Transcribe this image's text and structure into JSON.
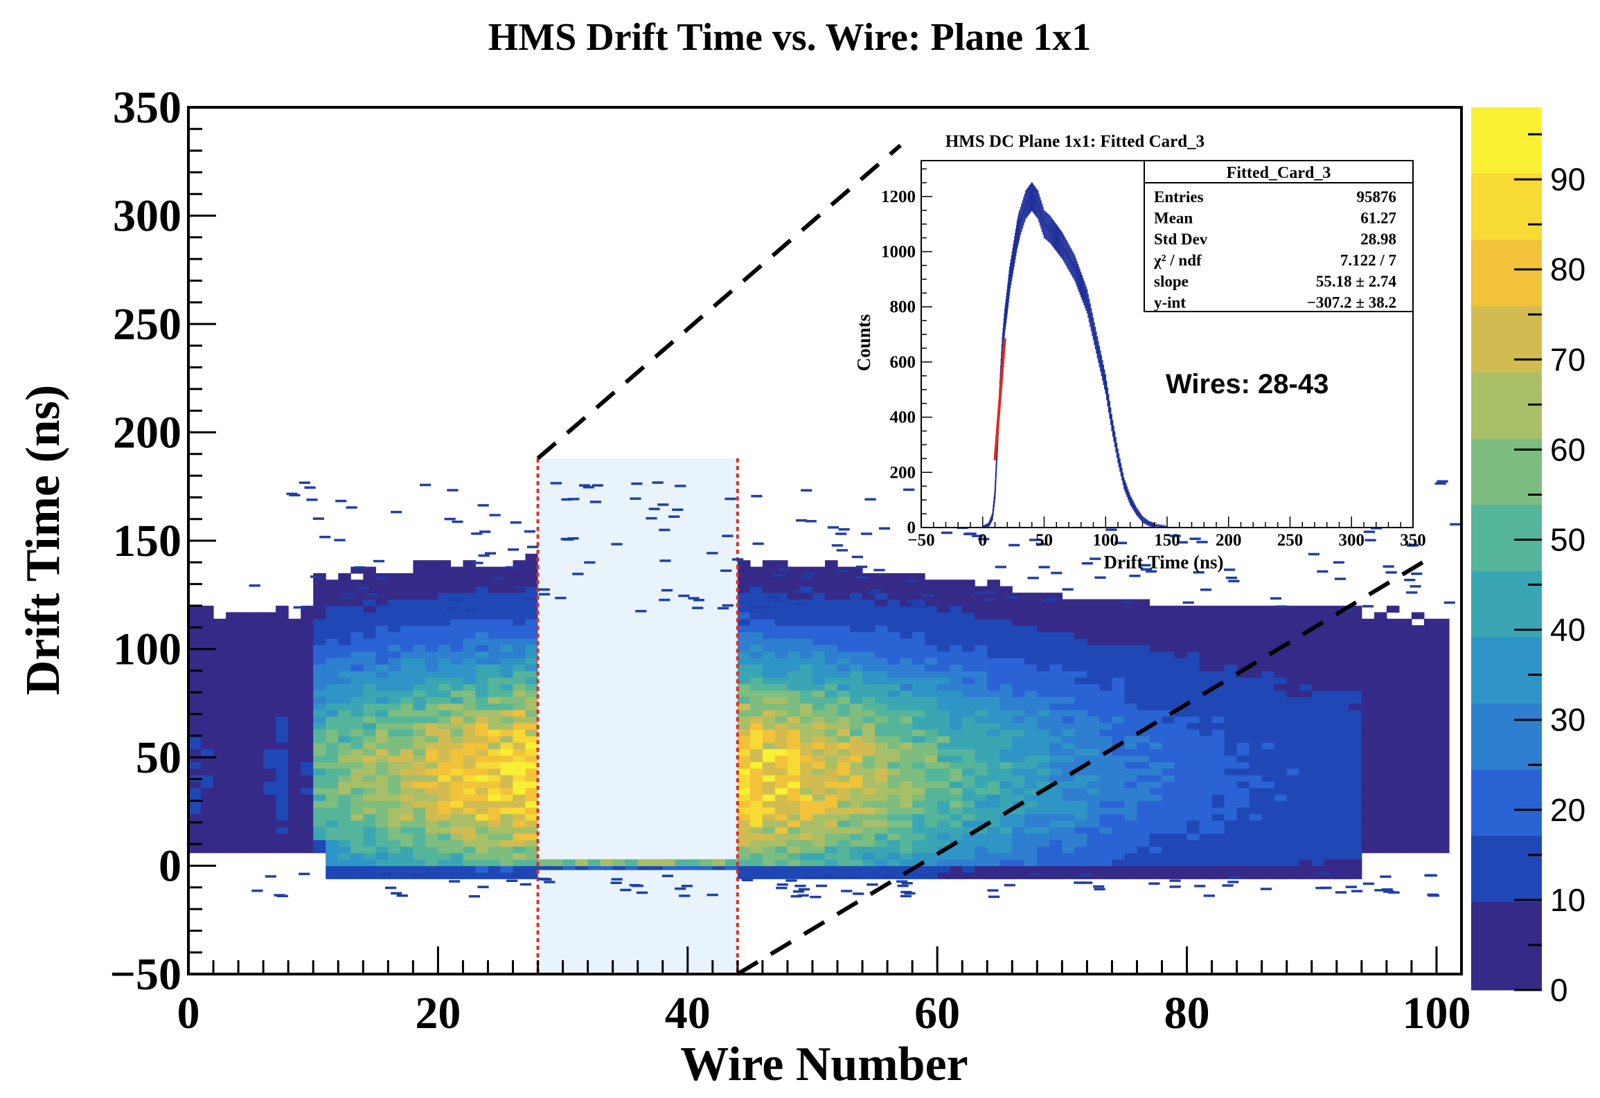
{
  "chart_data": [
    {
      "type": "heatmap",
      "title": "HMS Drift Time vs. Wire: Plane 1x1",
      "xlabel": "Wire Number",
      "ylabel": "Drift Time (ns)",
      "xlim": [
        0,
        102
      ],
      "ylim": [
        -50,
        350
      ],
      "xticks": [
        "0",
        "20",
        "40",
        "60",
        "80",
        "100"
      ],
      "yticks": [
        "−50",
        "0",
        "50",
        "100",
        "150",
        "200",
        "250",
        "300",
        "350"
      ],
      "colorbar": {
        "range": [
          0,
          98
        ],
        "ticks": [
          "0",
          "10",
          "20",
          "30",
          "40",
          "50",
          "60",
          "70",
          "80",
          "90"
        ],
        "palette": [
          "#352a87",
          "#1f47b5",
          "#2a63d4",
          "#2f7fd0",
          "#2f94c6",
          "#3aa6b3",
          "#55b59a",
          "#7dbd7f",
          "#a8bf67",
          "#d2bc52",
          "#f2c23a",
          "#f7da33",
          "#f9f034"
        ]
      },
      "highlight": {
        "wire_range": [
          28,
          43
        ],
        "color": "#e8f3fb",
        "line_color": "#d9312b"
      },
      "approx_density": {
        "description": "peak near wire 36, drift time 40 ns",
        "peak_wire": 36,
        "peak_time": 40,
        "max_count": 98
      }
    },
    {
      "type": "line",
      "title": "HMS DC Plane 1x1: Fitted Card_3",
      "xlabel": "Drift Time (ns)",
      "ylabel": "Counts",
      "xlim": [
        -50,
        350
      ],
      "ylim": [
        0,
        1330
      ],
      "xticks": [
        "−50",
        "0",
        "50",
        "100",
        "150",
        "200",
        "250",
        "300",
        "350"
      ],
      "yticks": [
        "0",
        "200",
        "400",
        "600",
        "800",
        "1000",
        "1200"
      ],
      "series": [
        {
          "name": "",
          "color": "#1f2f9a",
          "x": [
            0,
            5,
            8,
            10,
            12,
            14,
            16,
            18,
            20,
            22,
            25,
            28,
            30,
            35,
            40,
            45,
            50,
            55,
            60,
            65,
            70,
            75,
            80,
            85,
            90,
            95,
            100,
            105,
            110,
            115,
            120,
            125,
            130,
            135,
            140,
            150
          ],
          "y": [
            0,
            10,
            40,
            120,
            300,
            500,
            650,
            750,
            820,
            900,
            980,
            1060,
            1100,
            1170,
            1200,
            1170,
            1100,
            1080,
            1050,
            1020,
            980,
            940,
            880,
            820,
            720,
            620,
            520,
            380,
            260,
            160,
            100,
            60,
            30,
            15,
            8,
            2
          ]
        },
        {
          "name": "",
          "color": "#e0281e",
          "x": [
            10,
            18
          ],
          "y": [
            244,
            686
          ]
        }
      ],
      "stats": {
        "title": "Fitted_Card_3",
        "rows": [
          {
            "label": "Entries",
            "value": "95876"
          },
          {
            "label": "Mean",
            "value": "61.27"
          },
          {
            "label": "Std Dev",
            "value": "28.98"
          },
          {
            "label": "χ² / ndf",
            "value": "7.122 / 7"
          },
          {
            "label": "slope",
            "value": "55.18  ± 2.74"
          },
          {
            "label": "y-int",
            "value": "−307.2  ± 38.2"
          }
        ]
      },
      "annotation": "Wires: 28-43"
    }
  ]
}
